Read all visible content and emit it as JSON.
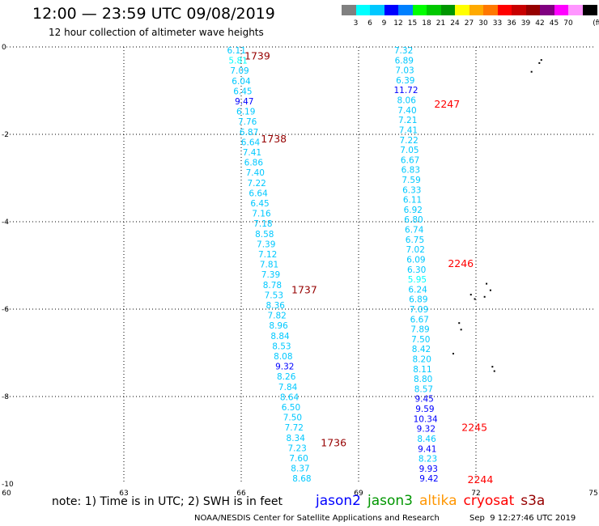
{
  "header": {
    "title": "12:00 — 23:59 UTC 09/08/2019",
    "subtitle": "12 hour collection of altimeter wave heights"
  },
  "colorbar": {
    "unit_label": "(ft)",
    "colors": [
      "#808080",
      "#00ffff",
      "#00c8ff",
      "#0000ff",
      "#0080ff",
      "#00ff00",
      "#00c800",
      "#009600",
      "#ffff00",
      "#ffaa00",
      "#ff7800",
      "#ff0000",
      "#c80000",
      "#960000",
      "#800080",
      "#ff00ff",
      "#ff96ff",
      "#000000"
    ],
    "labels": [
      "3",
      "6",
      "9",
      "12",
      "15",
      "18",
      "21",
      "24",
      "27",
      "30",
      "33",
      "36",
      "39",
      "42",
      "45",
      "70"
    ]
  },
  "axes": {
    "x_ticks": [
      "60",
      "63",
      "66",
      "69",
      "72",
      "75"
    ],
    "y_ticks": [
      "0",
      "-2",
      "-4",
      "-6",
      "-8",
      "-10"
    ],
    "lon_range": [
      60,
      75
    ],
    "lat_range": [
      -10,
      0
    ]
  },
  "tracks": [
    {
      "satellite": "cryosat",
      "lon_start": 65.88,
      "lat_start": 0.0,
      "lon_end": 67.55,
      "lat_end": -9.8,
      "values": [
        "6.11",
        "5.81",
        "7.09",
        "6.04",
        "6.45",
        "9.47",
        "6.19",
        "7.76",
        "6.87",
        "6.64",
        "7.41",
        "6.86",
        "7.40",
        "7.22",
        "6.64",
        "6.45",
        "7.16",
        "7.18",
        "8.58",
        "7.39",
        "7.12",
        "7.81",
        "7.39",
        "8.78",
        "7.53",
        "8.36",
        "7.82",
        "8.96",
        "8.84",
        "8.53",
        "8.08",
        "9.32",
        "8.26",
        "7.84",
        "8.64",
        "6.50",
        "7.50",
        "7.72",
        "8.34",
        "7.23",
        "7.60",
        "8.37",
        "8.68"
      ],
      "time_labels": [
        {
          "text": "1739",
          "lon": 66.0,
          "lat": -0.1
        },
        {
          "text": "1738",
          "lon": 66.42,
          "lat": -2.0
        },
        {
          "text": "1737",
          "lon": 67.2,
          "lat": -5.45
        },
        {
          "text": "1736",
          "lon": 67.95,
          "lat": -8.95
        }
      ]
    },
    {
      "satellite": "cryosat",
      "lon_start": 70.15,
      "lat_start": 0.0,
      "lon_end": 70.8,
      "lat_end": -9.8,
      "values": [
        "7.32",
        "6.89",
        "7.03",
        "6.39",
        "11.72",
        "8.06",
        "7.40",
        "7.21",
        "7.41",
        "7.22",
        "7.05",
        "6.67",
        "6.83",
        "7.59",
        "6.33",
        "6.11",
        "6.92",
        "6.80",
        "6.74",
        "6.75",
        "7.02",
        "6.09",
        "6.30",
        "5.95",
        "6.24",
        "6.89",
        "7.09",
        "6.67",
        "7.89",
        "7.50",
        "8.42",
        "8.20",
        "8.11",
        "8.80",
        "8.57",
        "9.45",
        "9.59",
        "10.34",
        "9.32",
        "8.46",
        "9.41",
        "8.23",
        "9.93",
        "9.42"
      ],
      "time_labels": [
        {
          "text": "2247",
          "lon": 70.85,
          "lat": -1.2
        },
        {
          "text": "2246",
          "lon": 71.2,
          "lat": -4.85
        },
        {
          "text": "2245",
          "lon": 71.55,
          "lat": -8.6
        },
        {
          "text": "2244",
          "lon": 71.7,
          "lat": -9.8
        }
      ]
    }
  ],
  "footer": {
    "note": "note: 1) Time is in UTC; 2) SWH is in feet",
    "legend": [
      {
        "name": "jason2",
        "color": "#0000ff"
      },
      {
        "name": "jason3",
        "color": "#009600"
      },
      {
        "name": "altika",
        "color": "#ff9600"
      },
      {
        "name": "cryosat",
        "color": "#ff0000"
      },
      {
        "name": "s3a",
        "color": "#960000"
      }
    ],
    "credit": "NOAA/NESDIS Center for Satellite Applications and Research",
    "timestamp": "Sep  9 12:27:46 UTC 2019"
  }
}
